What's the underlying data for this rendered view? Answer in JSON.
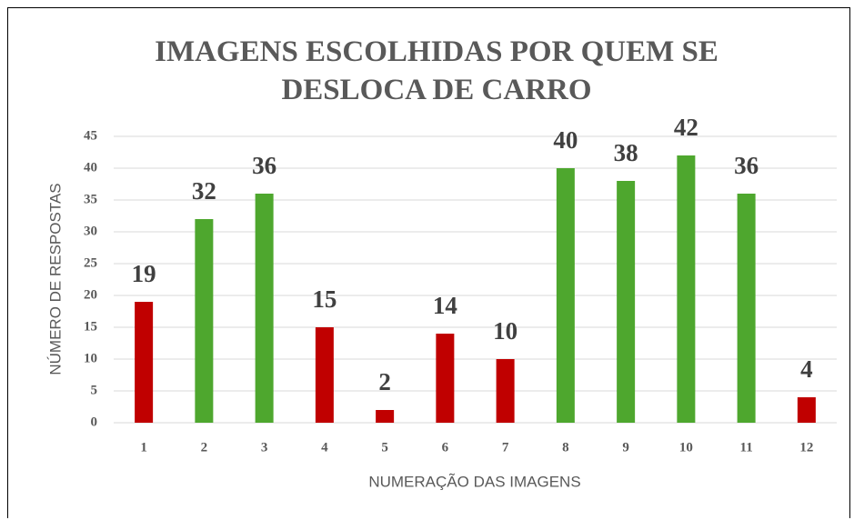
{
  "chart_data": {
    "type": "bar",
    "title": "IMAGENS ESCOLHIDAS POR QUEM SE DESLOCA DE CARRO",
    "x_label": "NUMERAÇÃO DAS IMAGENS",
    "y_label": "NÚMERO DE RESPOSTAS",
    "categories": [
      "1",
      "2",
      "3",
      "4",
      "5",
      "6",
      "7",
      "8",
      "9",
      "10",
      "11",
      "12"
    ],
    "values": [
      19,
      32,
      36,
      15,
      2,
      14,
      10,
      40,
      38,
      42,
      36,
      4
    ],
    "colors": [
      "#c00000",
      "#4ea72e",
      "#4ea72e",
      "#c00000",
      "#c00000",
      "#c00000",
      "#c00000",
      "#4ea72e",
      "#4ea72e",
      "#4ea72e",
      "#4ea72e",
      "#c00000"
    ],
    "ylim": [
      0,
      45
    ],
    "yticks": [
      0,
      5,
      10,
      15,
      20,
      25,
      30,
      35,
      40,
      45
    ],
    "grid": true
  }
}
